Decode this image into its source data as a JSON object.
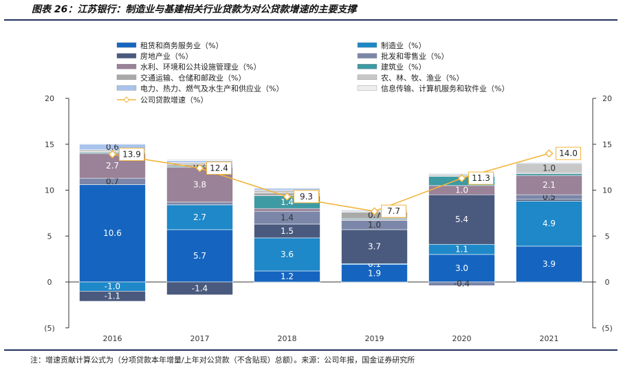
{
  "title": "图表 26：江苏银行：制造业与基建相关行业贷款为对公贷款增速的主要支撑",
  "note": "注：增速贡献计算公式为（分项贷款本年增量/上年对公贷款（不含贴现）总额）。来源：公司年报，国金证券研究所",
  "chart_data": {
    "type": "bar",
    "subtype": "stacked-bar-with-line",
    "categories": [
      "2016",
      "2017",
      "2018",
      "2019",
      "2020",
      "2021"
    ],
    "ylim": [
      -5,
      20
    ],
    "yticks": [
      -5,
      0,
      5,
      10,
      15,
      20
    ],
    "ytick_labels": [
      "(5)",
      "0",
      "5",
      "10",
      "15",
      "20"
    ],
    "grid": false,
    "legend_position": "top",
    "series": [
      {
        "name": "租赁和商务服务业（%）",
        "color": "#1565c0",
        "values": [
          10.6,
          5.7,
          1.2,
          1.9,
          3.0,
          3.9
        ],
        "labels": [
          "10.6",
          "5.7",
          "1.2",
          "1.9",
          "3.0",
          "3.9"
        ]
      },
      {
        "name": "制造业（%）",
        "color": "#1e88c8",
        "values": [
          -1.0,
          2.7,
          3.6,
          0.1,
          1.1,
          4.9
        ],
        "labels": [
          "-1.0",
          "2.7",
          "3.6",
          "0.1",
          "1.1",
          "4.9"
        ]
      },
      {
        "name": "房地产业（%）",
        "color": "#4a5a7e",
        "values": [
          -1.1,
          -1.4,
          1.5,
          3.7,
          5.4,
          0.2
        ],
        "labels": [
          "-1.1",
          "-1.4",
          "1.5",
          "3.7",
          "5.4",
          ""
        ]
      },
      {
        "name": "批发和零售业（%）",
        "color": "#7b86a8",
        "values": [
          0.7,
          0.3,
          1.4,
          1.0,
          -0.4,
          0.5
        ],
        "labels": [
          "0.7",
          "",
          "1.4",
          "1.0",
          "-0.4",
          "0.5"
        ]
      },
      {
        "name": "水利、环境和公共设施管理业（%）",
        "color": "#9a8298",
        "values": [
          2.7,
          3.8,
          0.3,
          0.1,
          1.0,
          2.1
        ],
        "labels": [
          "2.7",
          "3.8",
          "",
          "",
          "1.0",
          "2.1"
        ]
      },
      {
        "name": "建筑业（%）",
        "color": "#3e9aa3",
        "values": [
          0.1,
          0.1,
          1.4,
          0.1,
          1.0,
          0.2
        ],
        "labels": [
          "",
          "",
          "1.4",
          "",
          "",
          ""
        ]
      },
      {
        "name": "交通运输、仓储和邮政业（%）",
        "color": "#a9a9a9",
        "values": [
          0.1,
          0.2,
          0.3,
          0.7,
          0.1,
          0.1
        ],
        "labels": [
          "",
          "0.2",
          "",
          "0.7",
          "",
          ""
        ]
      },
      {
        "name": "农、林、牧、渔业（%）",
        "color": "#c8c8c8",
        "values": [
          0.2,
          0.2,
          0.3,
          0.1,
          0.1,
          1.0
        ],
        "labels": [
          "",
          "",
          "",
          "",
          "",
          "1.0"
        ]
      },
      {
        "name": "电力、热力、燃气及水生产和供应业（%）",
        "color": "#a9c4ec",
        "values": [
          0.6,
          0.2,
          0.2,
          0.1,
          0.1,
          0.1
        ],
        "labels": [
          "0.6",
          "",
          "",
          "",
          "",
          ""
        ]
      },
      {
        "name": "信息传输、计算机服务和软件业（%）",
        "color": "#eeeeee",
        "values": [
          0.1,
          0.2,
          0.1,
          0.1,
          0.1,
          0.1
        ],
        "labels": [
          "",
          "",
          "",
          "",
          "",
          ""
        ]
      }
    ],
    "line": {
      "name": "公司贷款增速（%）",
      "color": "#f2b43a",
      "values": [
        13.9,
        12.4,
        9.3,
        7.7,
        11.3,
        14.0
      ],
      "labels": [
        "13.9",
        "12.4",
        "9.3",
        "7.7",
        "11.3",
        "14.0"
      ]
    },
    "legend_order": [
      0,
      1,
      2,
      3,
      4,
      5,
      6,
      7,
      8,
      9
    ]
  }
}
